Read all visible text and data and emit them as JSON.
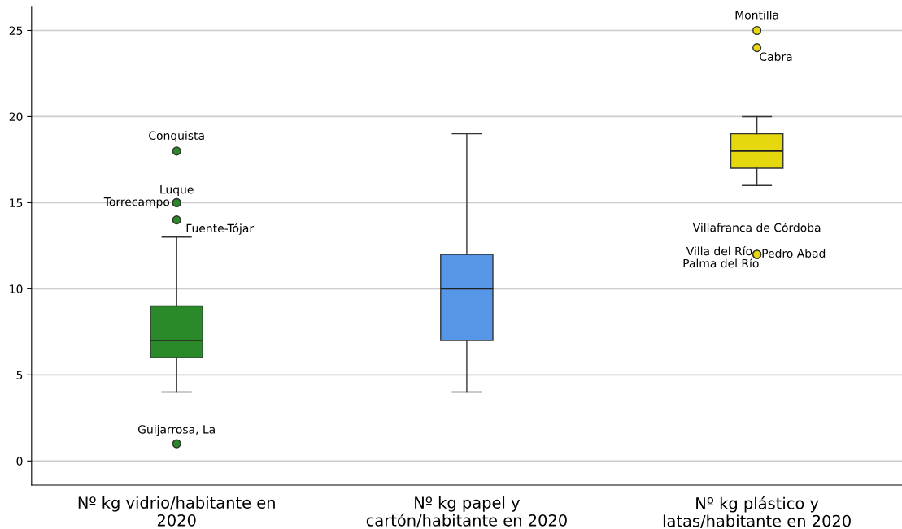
{
  "chart_data": {
    "type": "box",
    "categories": [
      "Nº kg vidrio/habitante en\n2020",
      "Nº kg papel y\ncartón/habitante en 2020",
      "Nº kg plástico y\nlatas/habitante en 2020"
    ],
    "colors": [
      "#2a8a2a",
      "#5596e6",
      "#e6d80e"
    ],
    "boxes": [
      {
        "low": 4,
        "q1": 6,
        "median": 7,
        "q3": 9,
        "high": 13,
        "outliers": [
          18,
          15,
          15,
          14,
          1
        ]
      },
      {
        "low": 4,
        "q1": 7,
        "median": 10,
        "q3": 12,
        "high": 19
      },
      {
        "low": 16,
        "q1": 17,
        "median": 18,
        "q3": 19,
        "high": 20,
        "outliers": [
          25,
          24,
          12,
          12,
          12,
          12
        ]
      }
    ],
    "ylim": [
      -1.4,
      26.4
    ],
    "yticks": [
      0,
      5,
      10,
      15,
      20,
      25
    ],
    "grid": "y",
    "annotations": [
      "Conquista",
      "Luque",
      "Torrecampo",
      "Fuente-Tójar",
      "Guijarrosa, La",
      "Montilla",
      "Cabra",
      "Villafranca de Córdoba",
      "Villa del Río",
      "Pedro Abad",
      "Palma del Río"
    ]
  }
}
